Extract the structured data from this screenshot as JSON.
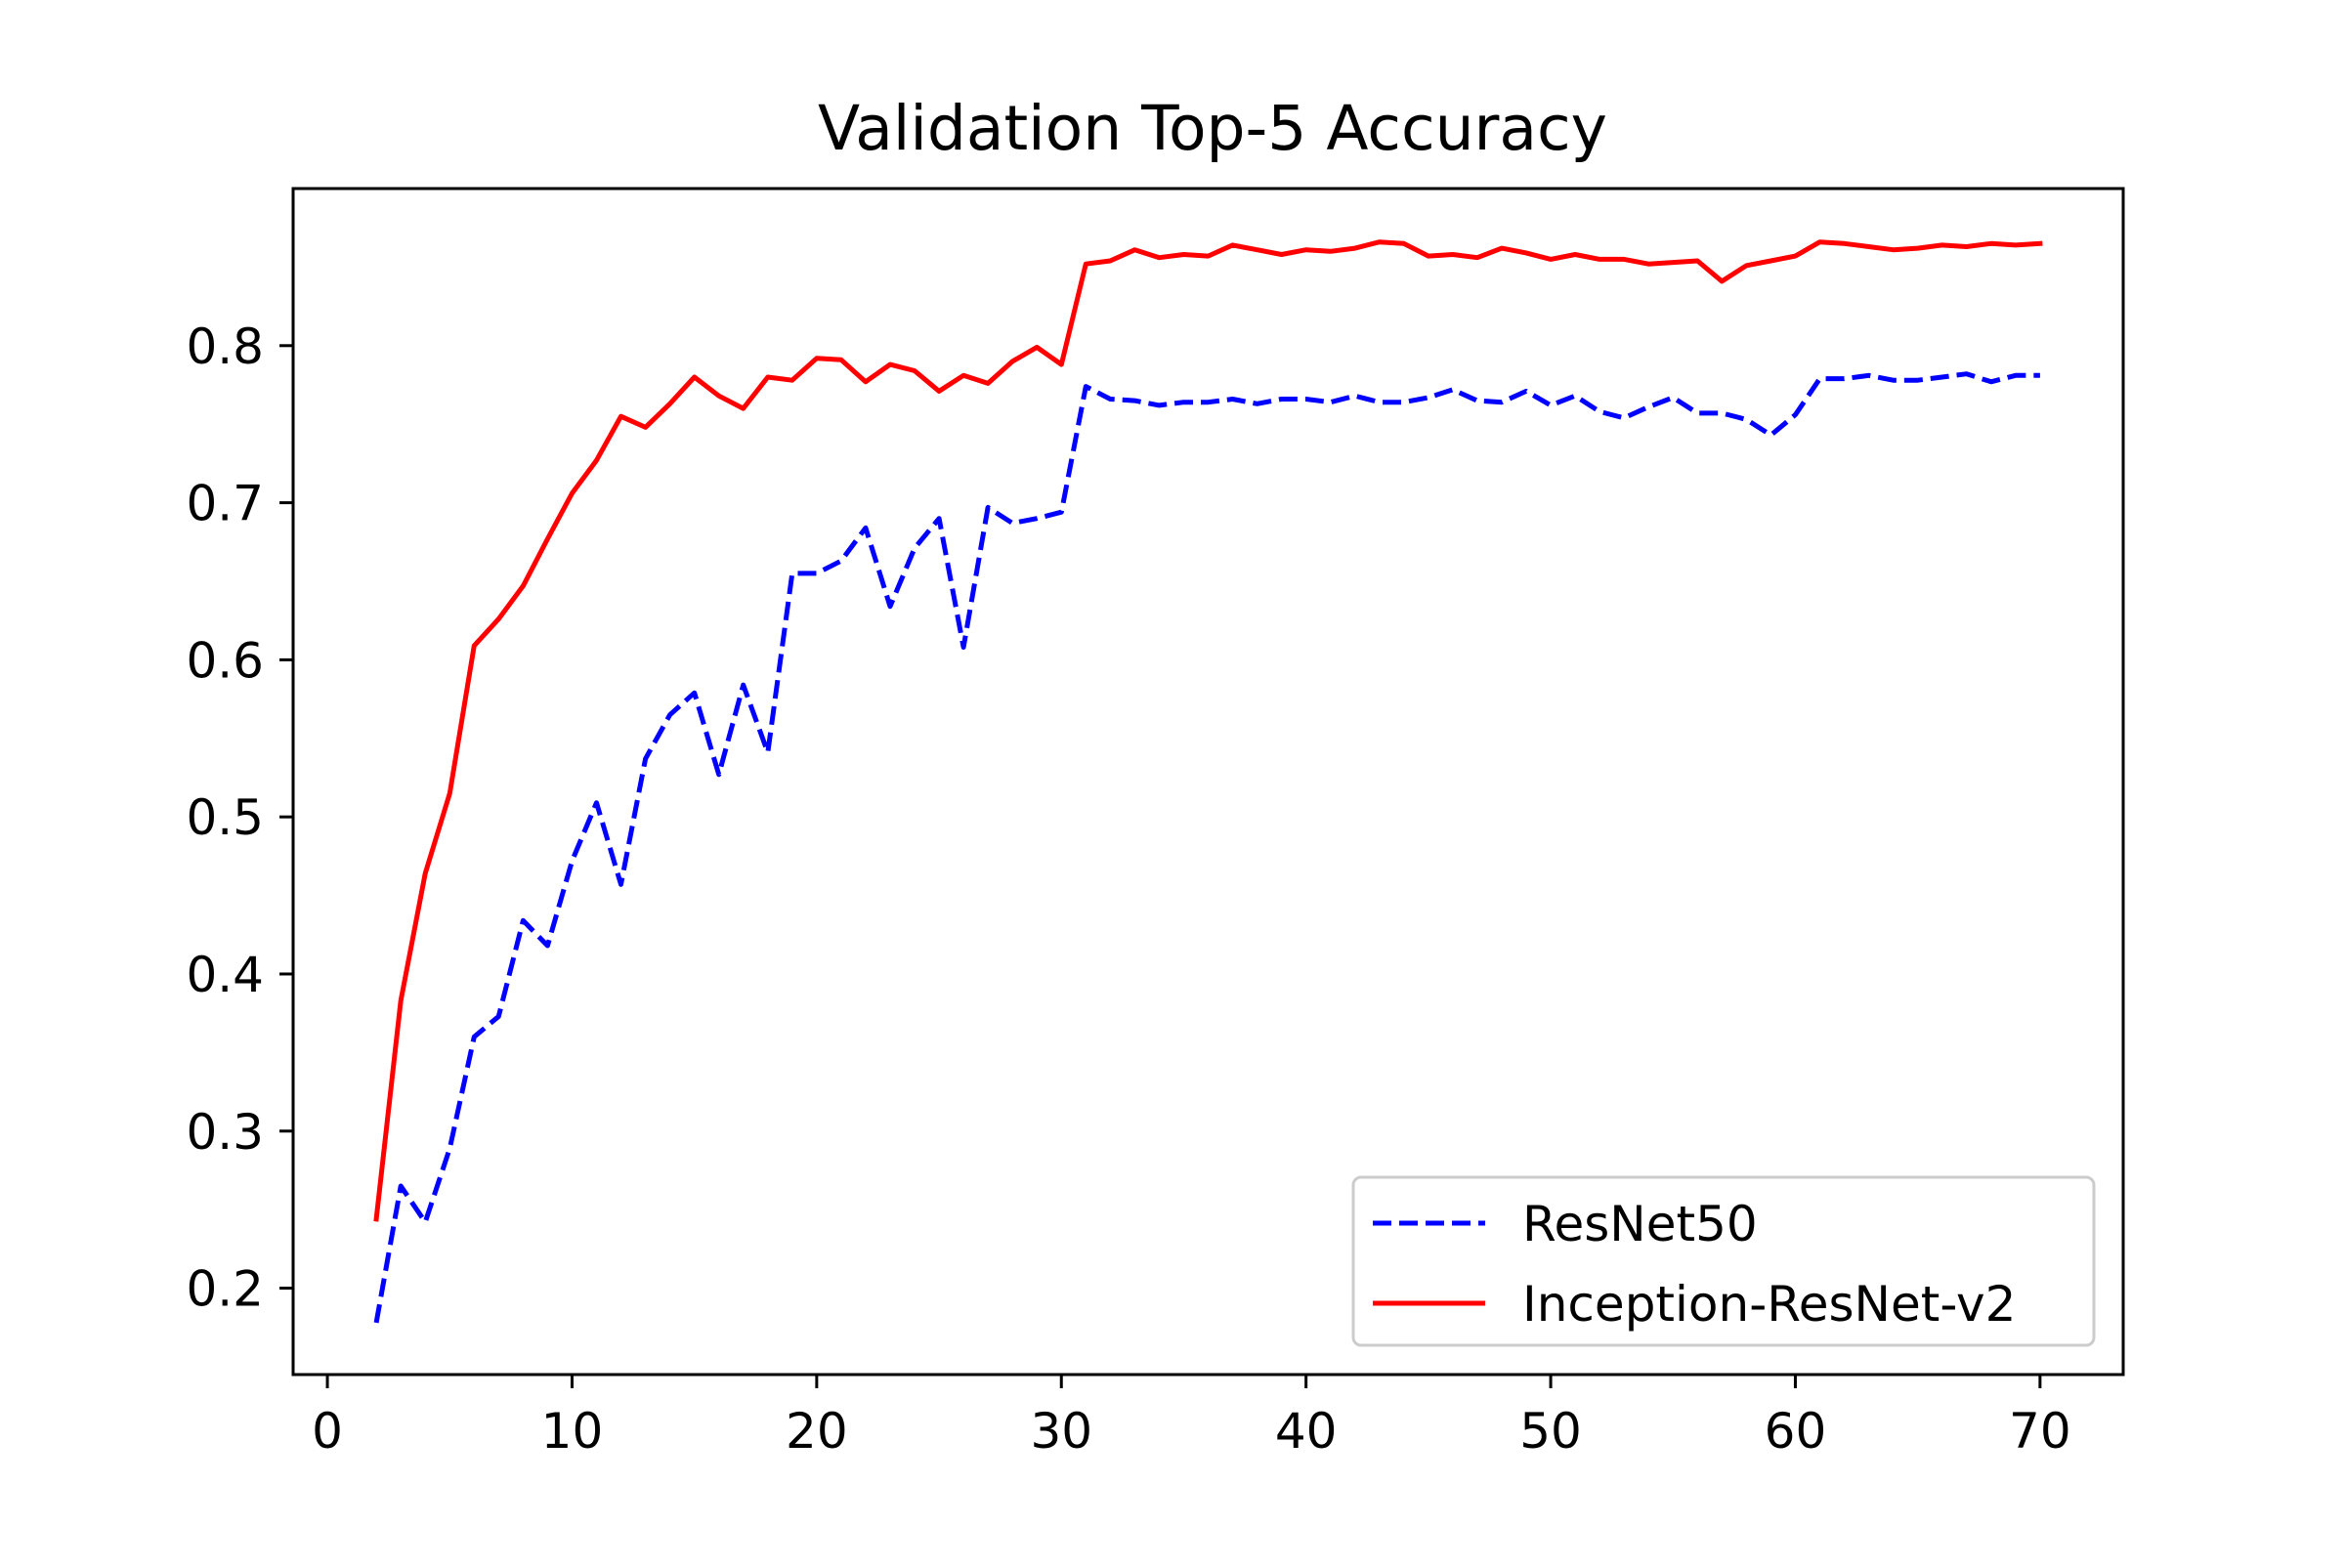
{
  "chart_data": {
    "type": "line",
    "title": "Validation Top-5 Accuracy",
    "xlabel": "",
    "ylabel": "",
    "xlim": [
      -1.4,
      73.4
    ],
    "ylim": [
      0.145,
      0.9
    ],
    "xticks": [
      0,
      10,
      20,
      30,
      40,
      50,
      60,
      70
    ],
    "yticks": [
      0.2,
      0.3,
      0.4,
      0.5,
      0.6,
      0.7,
      0.8
    ],
    "grid": false,
    "legend_position": "lower-right",
    "series": [
      {
        "name": "ResNet50",
        "color": "#0000ff",
        "linestyle": "dashed",
        "x": [
          2,
          3,
          4,
          5,
          6,
          7,
          8,
          9,
          10,
          11,
          12,
          13,
          14,
          15,
          16,
          17,
          18,
          19,
          20,
          21,
          22,
          23,
          24,
          25,
          26,
          27,
          28,
          29,
          30,
          31,
          32,
          33,
          34,
          35,
          36,
          37,
          38,
          39,
          40,
          41,
          42,
          43,
          44,
          45,
          46,
          47,
          48,
          49,
          50,
          51,
          52,
          53,
          54,
          55,
          56,
          57,
          58,
          59,
          60,
          61,
          62,
          63,
          64,
          65,
          66,
          67,
          68,
          69,
          70
        ],
        "values": [
          0.178,
          0.265,
          0.242,
          0.289,
          0.36,
          0.373,
          0.434,
          0.418,
          0.472,
          0.509,
          0.457,
          0.537,
          0.565,
          0.579,
          0.527,
          0.584,
          0.541,
          0.655,
          0.655,
          0.663,
          0.684,
          0.634,
          0.671,
          0.69,
          0.608,
          0.697,
          0.687,
          0.69,
          0.694,
          0.774,
          0.766,
          0.765,
          0.762,
          0.764,
          0.764,
          0.766,
          0.763,
          0.766,
          0.766,
          0.764,
          0.768,
          0.764,
          0.764,
          0.767,
          0.772,
          0.765,
          0.764,
          0.771,
          0.762,
          0.768,
          0.758,
          0.754,
          0.761,
          0.767,
          0.757,
          0.757,
          0.753,
          0.743,
          0.756,
          0.779,
          0.779,
          0.781,
          0.778,
          0.778,
          0.78,
          0.782,
          0.777,
          0.781,
          0.781
        ]
      },
      {
        "name": "Inception-ResNet-v2",
        "color": "#ff0000",
        "linestyle": "solid",
        "x": [
          2,
          3,
          4,
          5,
          6,
          7,
          8,
          9,
          10,
          11,
          12,
          13,
          14,
          15,
          16,
          17,
          18,
          19,
          20,
          21,
          22,
          23,
          24,
          25,
          26,
          27,
          28,
          29,
          30,
          31,
          32,
          33,
          34,
          35,
          36,
          37,
          38,
          39,
          40,
          41,
          42,
          43,
          44,
          45,
          46,
          47,
          48,
          49,
          50,
          51,
          52,
          53,
          54,
          55,
          56,
          57,
          58,
          59,
          60,
          61,
          62,
          63,
          64,
          65,
          66,
          67,
          68,
          69,
          70
        ],
        "values": [
          0.244,
          0.383,
          0.464,
          0.515,
          0.609,
          0.626,
          0.647,
          0.677,
          0.706,
          0.727,
          0.755,
          0.748,
          0.763,
          0.78,
          0.768,
          0.76,
          0.78,
          0.778,
          0.792,
          0.791,
          0.777,
          0.788,
          0.784,
          0.771,
          0.781,
          0.776,
          0.79,
          0.799,
          0.788,
          0.852,
          0.854,
          0.861,
          0.856,
          0.858,
          0.857,
          0.864,
          0.861,
          0.858,
          0.861,
          0.86,
          0.862,
          0.866,
          0.865,
          0.857,
          0.858,
          0.856,
          0.862,
          0.859,
          0.855,
          0.858,
          0.855,
          0.855,
          0.852,
          0.853,
          0.854,
          0.841,
          0.851,
          0.854,
          0.857,
          0.866,
          0.865,
          0.863,
          0.861,
          0.862,
          0.864,
          0.863,
          0.865,
          0.864,
          0.865
        ]
      }
    ]
  }
}
